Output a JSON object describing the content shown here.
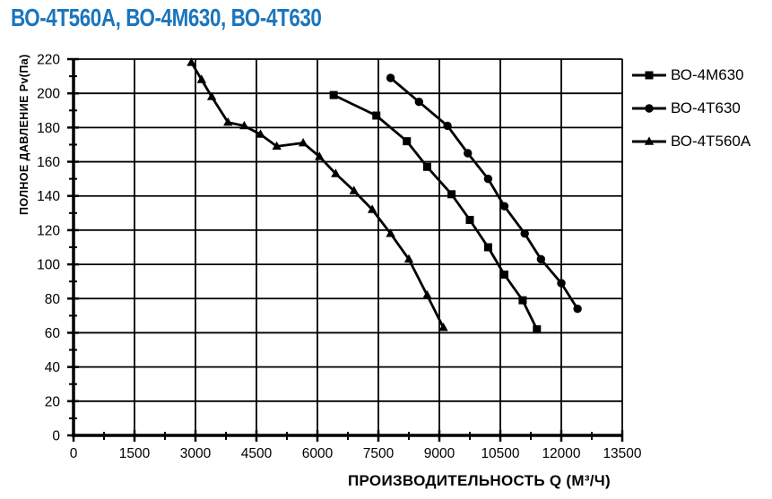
{
  "page": {
    "background_color": "#ffffff",
    "title_color": "#1b75bc",
    "line_color": "#000000"
  },
  "chart_data": {
    "type": "line",
    "title": "ВО-4Т560А, ВО-4М630, ВО-4Т630",
    "xlabel": "ПРОИЗВОДИТЕЛЬНОСТЬ   Q  (М³/Ч)",
    "ylabel": "ПОЛНОЕ ДАВЛЕНИЕ  Pv(Па)",
    "xlim": [
      0,
      13500
    ],
    "ylim": [
      0,
      220
    ],
    "xticks": [
      0,
      1500,
      3000,
      4500,
      6000,
      7500,
      9000,
      10500,
      12000,
      13500
    ],
    "yticks": [
      0,
      20,
      40,
      60,
      80,
      100,
      120,
      140,
      160,
      180,
      200,
      220
    ],
    "x_minor_step": 750,
    "y_minor_step": 10,
    "grid": true,
    "legend_position": "right-top",
    "series": [
      {
        "name": "ВО-4М630",
        "marker": "square",
        "color": "#000000",
        "points": [
          [
            6400,
            199
          ],
          [
            7450,
            187
          ],
          [
            8200,
            172
          ],
          [
            8700,
            157
          ],
          [
            9300,
            141
          ],
          [
            9750,
            126
          ],
          [
            10200,
            110
          ],
          [
            10600,
            94
          ],
          [
            11050,
            79
          ],
          [
            11400,
            62
          ]
        ]
      },
      {
        "name": "ВО-4Т630",
        "marker": "circle",
        "color": "#000000",
        "points": [
          [
            7800,
            209
          ],
          [
            8500,
            195
          ],
          [
            9200,
            181
          ],
          [
            9700,
            165
          ],
          [
            10200,
            150
          ],
          [
            10600,
            134
          ],
          [
            11100,
            118
          ],
          [
            11500,
            103
          ],
          [
            12000,
            89
          ],
          [
            12400,
            74
          ]
        ]
      },
      {
        "name": "ВО-4Т560А",
        "marker": "triangle",
        "color": "#000000",
        "points": [
          [
            2900,
            218
          ],
          [
            3150,
            208
          ],
          [
            3400,
            198
          ],
          [
            3800,
            183
          ],
          [
            4200,
            181
          ],
          [
            4600,
            176
          ],
          [
            5000,
            169
          ],
          [
            5650,
            171
          ],
          [
            6050,
            163
          ],
          [
            6450,
            153
          ],
          [
            6900,
            143
          ],
          [
            7350,
            132
          ],
          [
            7800,
            118
          ],
          [
            8250,
            103
          ],
          [
            8700,
            82
          ],
          [
            9100,
            63
          ]
        ]
      }
    ]
  }
}
